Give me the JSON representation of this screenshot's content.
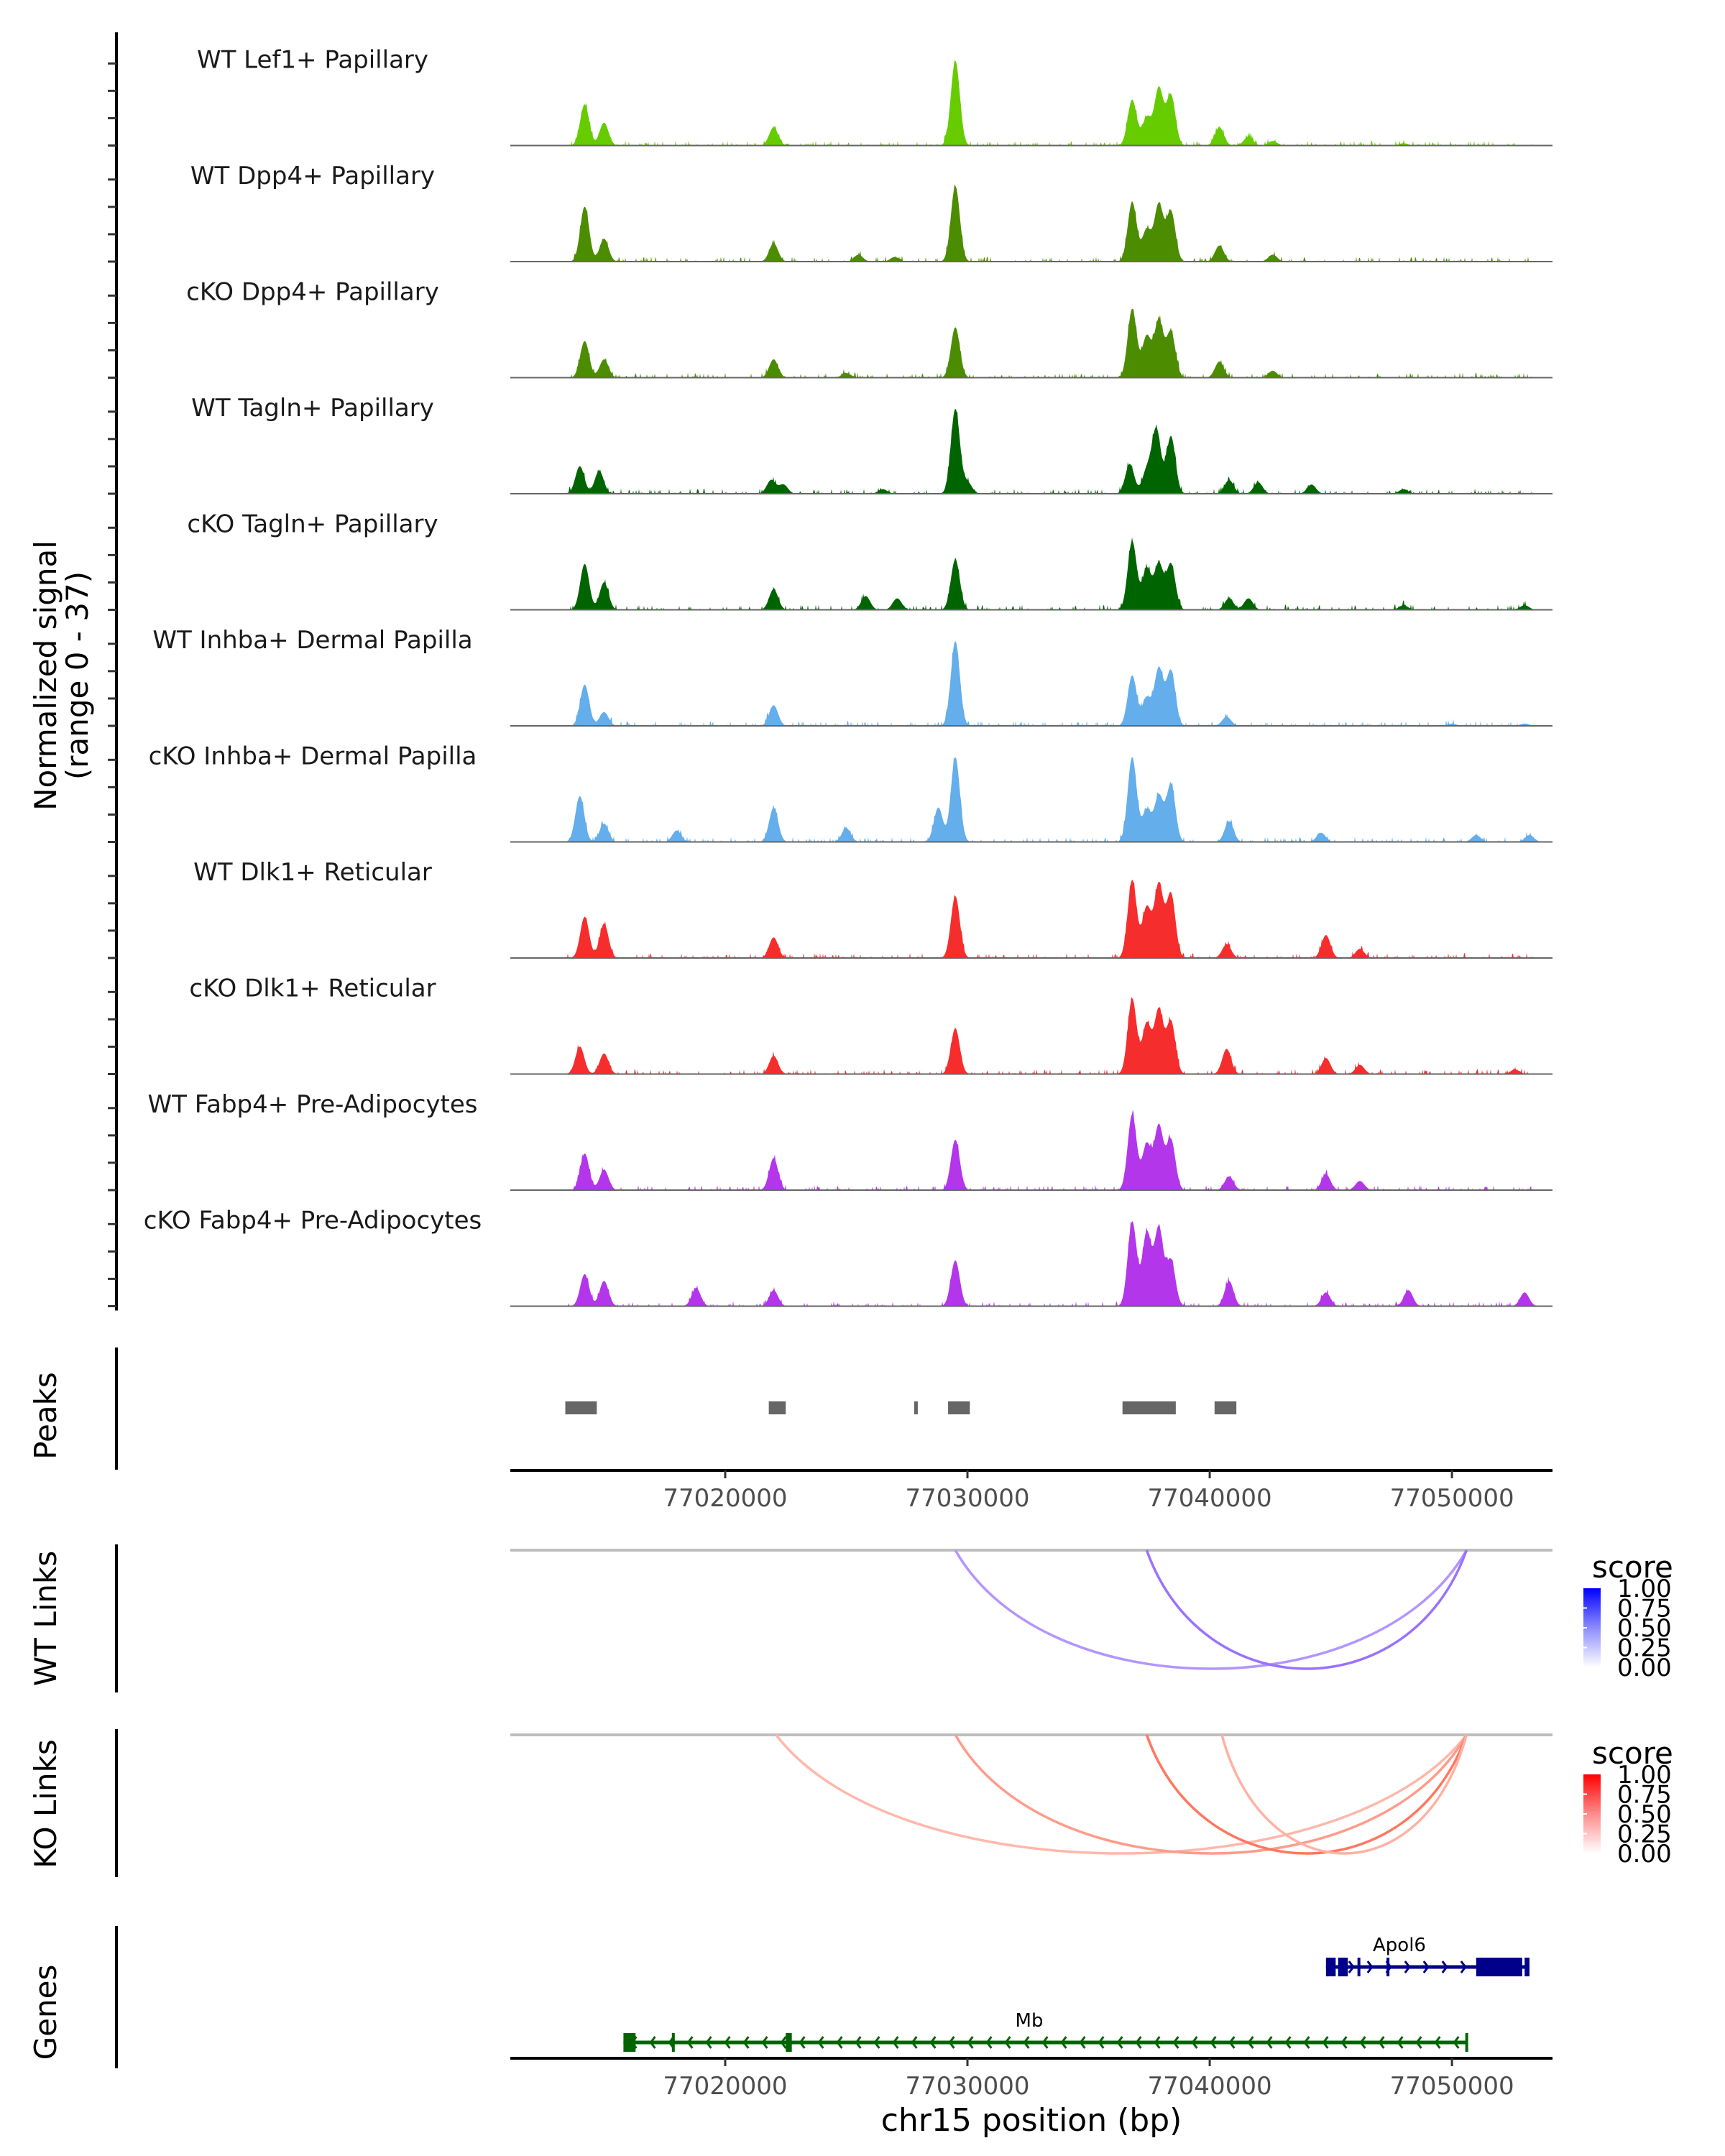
{
  "chart_data": {
    "type": "area",
    "title": "",
    "xlabel": "chr15 position (bp)",
    "ylabel": "Normalized signal\n(range 0 - 37)",
    "ylabel_lines": [
      "Normalized signal",
      "(range 0 - 37)"
    ],
    "ylim": [
      0,
      37
    ],
    "xlim": [
      77011130,
      77054150
    ],
    "x_ticks": [
      77020000,
      77030000,
      77040000,
      77050000
    ],
    "x_tick_labels": [
      "77020000",
      "77030000",
      "77040000",
      "77050000"
    ],
    "grid": false,
    "coverage_tracks": [
      {
        "name": "WT Lef1+ Papillary",
        "color": "#66cc00",
        "peaks": [
          [
            77014200,
            18
          ],
          [
            77015000,
            10
          ],
          [
            77022000,
            8
          ],
          [
            77029500,
            37
          ],
          [
            77036800,
            20
          ],
          [
            77037400,
            12
          ],
          [
            77037900,
            25
          ],
          [
            77038400,
            22
          ],
          [
            77040400,
            8
          ],
          [
            77041600,
            4
          ],
          [
            77042600,
            2
          ],
          [
            77048000,
            1
          ]
        ]
      },
      {
        "name": "WT Dpp4+ Papillary",
        "color": "#4c8c00",
        "peaks": [
          [
            77014200,
            24
          ],
          [
            77015000,
            10
          ],
          [
            77022000,
            8
          ],
          [
            77025500,
            3
          ],
          [
            77027000,
            2
          ],
          [
            77029500,
            33
          ],
          [
            77036800,
            26
          ],
          [
            77037400,
            14
          ],
          [
            77037900,
            25
          ],
          [
            77038400,
            22
          ],
          [
            77040400,
            7
          ],
          [
            77042600,
            3
          ]
        ]
      },
      {
        "name": "cKO Dpp4+ Papillary",
        "color": "#4c8c00",
        "peaks": [
          [
            77014200,
            16
          ],
          [
            77015000,
            8
          ],
          [
            77022000,
            8
          ],
          [
            77025000,
            2
          ],
          [
            77029500,
            22
          ],
          [
            77036800,
            30
          ],
          [
            77037400,
            18
          ],
          [
            77037900,
            25
          ],
          [
            77038400,
            20
          ],
          [
            77040400,
            7
          ],
          [
            77042600,
            3
          ]
        ]
      },
      {
        "name": "WT Tagln+ Papillary",
        "color": "#006400",
        "peaks": [
          [
            77014000,
            12
          ],
          [
            77014800,
            10
          ],
          [
            77021900,
            6
          ],
          [
            77022400,
            4
          ],
          [
            77026500,
            2
          ],
          [
            77029500,
            37
          ],
          [
            77030000,
            5
          ],
          [
            77036700,
            13
          ],
          [
            77037400,
            10
          ],
          [
            77037800,
            28
          ],
          [
            77038400,
            25
          ],
          [
            77040800,
            6
          ],
          [
            77042000,
            5
          ],
          [
            77044200,
            4
          ],
          [
            77048000,
            2
          ]
        ]
      },
      {
        "name": "cKO Tagln+ Papillary",
        "color": "#006400",
        "peaks": [
          [
            77014200,
            20
          ],
          [
            77015000,
            12
          ],
          [
            77022000,
            9
          ],
          [
            77025800,
            6
          ],
          [
            77027100,
            5
          ],
          [
            77029500,
            22
          ],
          [
            77036800,
            30
          ],
          [
            77037400,
            18
          ],
          [
            77037900,
            20
          ],
          [
            77038400,
            20
          ],
          [
            77040800,
            5
          ],
          [
            77041600,
            5
          ],
          [
            77048000,
            2
          ],
          [
            77053000,
            2
          ]
        ]
      },
      {
        "name": "WT Inhba+ Dermal Papilla",
        "color": "#63aeeb",
        "peaks": [
          [
            77014200,
            18
          ],
          [
            77015000,
            6
          ],
          [
            77022000,
            9
          ],
          [
            77029500,
            37
          ],
          [
            77036800,
            22
          ],
          [
            77037400,
            12
          ],
          [
            77037900,
            25
          ],
          [
            77038400,
            24
          ],
          [
            77040700,
            4
          ],
          [
            77050000,
            1
          ],
          [
            77053000,
            1
          ]
        ]
      },
      {
        "name": "cKO Inhba+ Dermal Papilla",
        "color": "#63aeeb",
        "peaks": [
          [
            77014000,
            20
          ],
          [
            77015000,
            8
          ],
          [
            77018000,
            5
          ],
          [
            77022000,
            15
          ],
          [
            77025000,
            6
          ],
          [
            77028800,
            15
          ],
          [
            77029500,
            37
          ],
          [
            77036800,
            37
          ],
          [
            77037400,
            14
          ],
          [
            77037900,
            20
          ],
          [
            77038400,
            25
          ],
          [
            77040800,
            9
          ],
          [
            77044600,
            4
          ],
          [
            77051000,
            3
          ],
          [
            77053200,
            3
          ]
        ]
      },
      {
        "name": "WT Dlk1+ Reticular",
        "color": "#f62d2d",
        "peaks": [
          [
            77014200,
            18
          ],
          [
            77015000,
            15
          ],
          [
            77022000,
            9
          ],
          [
            77029500,
            27
          ],
          [
            77036800,
            34
          ],
          [
            77037400,
            22
          ],
          [
            77037900,
            32
          ],
          [
            77038400,
            28
          ],
          [
            77040700,
            6
          ],
          [
            77044800,
            10
          ],
          [
            77046200,
            4
          ]
        ]
      },
      {
        "name": "cKO Dlk1+ Reticular",
        "color": "#f62d2d",
        "peaks": [
          [
            77014000,
            12
          ],
          [
            77015000,
            9
          ],
          [
            77022000,
            8
          ],
          [
            77029500,
            20
          ],
          [
            77036800,
            33
          ],
          [
            77037400,
            22
          ],
          [
            77037900,
            28
          ],
          [
            77038400,
            23
          ],
          [
            77040700,
            11
          ],
          [
            77044800,
            7
          ],
          [
            77046200,
            4
          ],
          [
            77052600,
            2
          ]
        ]
      },
      {
        "name": "WT Fabp4+ Pre-Adipocytes",
        "color": "#b336eb",
        "peaks": [
          [
            77014200,
            16
          ],
          [
            77015000,
            9
          ],
          [
            77022000,
            14
          ],
          [
            77029500,
            22
          ],
          [
            77036800,
            33
          ],
          [
            77037400,
            20
          ],
          [
            77037900,
            28
          ],
          [
            77038400,
            22
          ],
          [
            77040800,
            6
          ],
          [
            77044800,
            7
          ],
          [
            77046200,
            4
          ]
        ]
      },
      {
        "name": "cKO Fabp4+ Pre-Adipocytes",
        "color": "#b336eb",
        "peaks": [
          [
            77014200,
            14
          ],
          [
            77015000,
            11
          ],
          [
            77018800,
            8
          ],
          [
            77022000,
            7
          ],
          [
            77029500,
            20
          ],
          [
            77036800,
            37
          ],
          [
            77037400,
            32
          ],
          [
            77037900,
            34
          ],
          [
            77038400,
            20
          ],
          [
            77040800,
            11
          ],
          [
            77044800,
            6
          ],
          [
            77048200,
            7
          ],
          [
            77053000,
            6
          ]
        ]
      }
    ],
    "peaks_track": {
      "label": "Peaks",
      "color": "#666666",
      "regions": [
        [
          77013400,
          77014700
        ],
        [
          77021800,
          77022500
        ],
        [
          77027800,
          77027950
        ],
        [
          77029200,
          77030100
        ],
        [
          77036400,
          77038600
        ],
        [
          77040200,
          77041100
        ]
      ]
    },
    "link_tracks": [
      {
        "label": "WT Links",
        "legend_title": "score",
        "scale_color_high": "#0000ff",
        "scale_color_low": "#ffffff",
        "legend_ticks": [
          "1.00",
          "0.75",
          "0.50",
          "0.25",
          "0.00"
        ],
        "links": [
          {
            "start": 77029500,
            "end": 77050600,
            "score": 0.45
          },
          {
            "start": 77037400,
            "end": 77050600,
            "score": 0.65
          }
        ]
      },
      {
        "label": "KO Links",
        "legend_title": "score",
        "scale_color_high": "#ff0000",
        "scale_color_low": "#ffffff",
        "legend_ticks": [
          "1.00",
          "0.75",
          "0.50",
          "0.25",
          "0.00"
        ],
        "links": [
          {
            "start": 77022100,
            "end": 77050600,
            "score": 0.25
          },
          {
            "start": 77029500,
            "end": 77050600,
            "score": 0.4
          },
          {
            "start": 77037400,
            "end": 77050600,
            "score": 0.6
          },
          {
            "start": 77040500,
            "end": 77050600,
            "score": 0.28
          }
        ]
      }
    ],
    "genes_track": {
      "label": "Genes",
      "genes": [
        {
          "name": "Apol6",
          "strand": "+",
          "color": "#00008b",
          "start": 77044800,
          "end": 77053200,
          "exons": [
            [
              77044800,
              77045200
            ],
            [
              77045300,
              77045700
            ],
            [
              77046100,
              77046150
            ],
            [
              77047300,
              77047350
            ],
            [
              77051000,
              77052900
            ],
            [
              77053000,
              77053200
            ]
          ]
        },
        {
          "name": "Mb",
          "strand": "-",
          "color": "#006400",
          "start": 77015800,
          "end": 77050600,
          "exons": [
            [
              77015800,
              77016300
            ],
            [
              77017800,
              77017900
            ],
            [
              77022500,
              77022750
            ],
            [
              77050550,
              77050600
            ]
          ]
        }
      ]
    }
  }
}
